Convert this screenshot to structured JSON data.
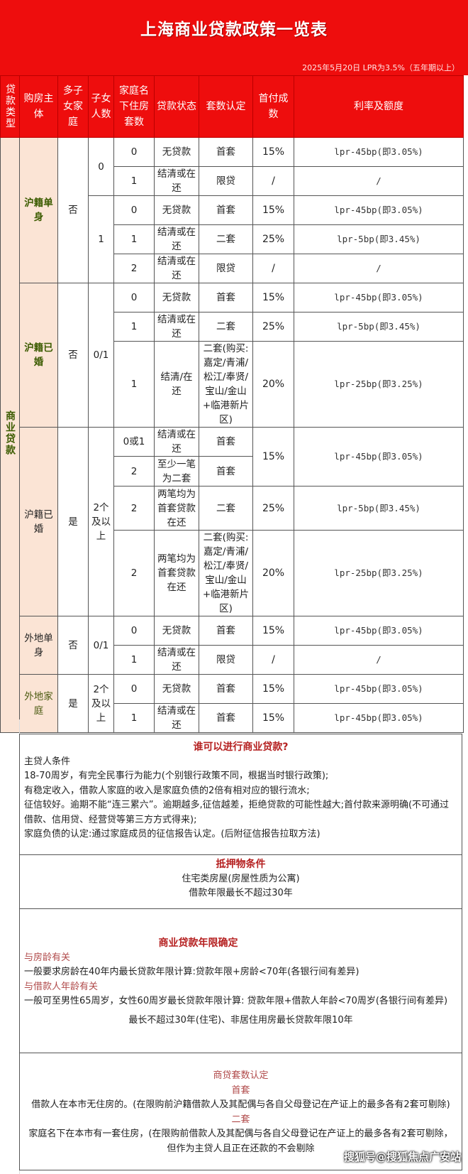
{
  "header": {
    "title": "上海商业贷款政策一览表",
    "lpr_note": "2025年5月20日 LPR为3.5%（五年期以上）",
    "bg_color": "#ee0d0d"
  },
  "columns": [
    "贷款类型",
    "购房主体",
    "多子女家庭",
    "子女人数",
    "家庭名下住房套数",
    "贷款状态",
    "套数认定",
    "首付成数",
    "利率及额度"
  ],
  "loan_type": "商业贷款",
  "groups": [
    {
      "subject": "沪籍单身",
      "style": "hl",
      "multi_child": "否",
      "children": [
        {
          "count": "0",
          "rows": [
            {
              "houses": "0",
              "status": "无贷款",
              "recognition": "首套",
              "down_payment": "15%",
              "rate": "lpr-45bp(即3.05%)"
            },
            {
              "houses": "1",
              "status": "结清或在还",
              "recognition": "限贷",
              "down_payment": "/",
              "rate": "/"
            }
          ]
        },
        {
          "count": "1",
          "rows": [
            {
              "houses": "0",
              "status": "无贷款",
              "recognition": "首套",
              "down_payment": "15%",
              "rate": "lpr-45bp(即3.05%)"
            },
            {
              "houses": "1",
              "status": "结清或在还",
              "recognition": "二套",
              "down_payment": "25%",
              "rate": "lpr-5bp(即3.45%)"
            },
            {
              "houses": "2",
              "status": "结清或在还",
              "recognition": "限贷",
              "down_payment": "/",
              "rate": "/"
            }
          ]
        }
      ]
    },
    {
      "subject": "沪籍已婚",
      "style": "hl",
      "multi_child": "否",
      "children": [
        {
          "count": "0/1",
          "rows": [
            {
              "houses": "0",
              "status": "无贷款",
              "recognition": "首套",
              "down_payment": "15%",
              "rate": "lpr-45bp(即3.05%)"
            },
            {
              "houses": "1",
              "status": "结清或在还",
              "recognition": "二套",
              "down_payment": "25%",
              "rate": "lpr-5bp(即3.45%)"
            },
            {
              "houses": "1",
              "status": "结清/在还",
              "recognition": "二套(购买:嘉定/青浦/松江/奉贤/宝山/金山+临港新片区)",
              "down_payment": "20%",
              "rate": "lpr-25bp(即3.25%)"
            }
          ]
        }
      ]
    },
    {
      "subject": "沪籍已婚",
      "style": "plain",
      "multi_child": "是",
      "children": [
        {
          "count": "2个及以上",
          "rows": [
            {
              "houses": "0或1",
              "status": "结清或在还",
              "recognition": "首套",
              "down_payment": "15%",
              "rate": "lpr-45bp(即3.05%)"
            },
            {
              "houses": "2",
              "status": "至少一笔为二套",
              "recognition": "首套",
              "down_payment": null,
              "rate": null
            },
            {
              "houses": "2",
              "status": "两笔均为首套贷款在还",
              "recognition": "二套",
              "down_payment": "25%",
              "rate": "lpr-5bp(即3.45%)"
            },
            {
              "houses": "2",
              "status": "两笔均为首套贷款在还",
              "recognition": "二套(购买:嘉定/青浦/松江/奉贤/宝山/金山+临港新片区)",
              "down_payment": "20%",
              "rate": "lpr-25bp(即3.25%)"
            }
          ]
        }
      ]
    },
    {
      "subject": "外地单身",
      "style": "plain",
      "multi_child": "否",
      "children": [
        {
          "count": "0/1",
          "rows": [
            {
              "houses": "0",
              "status": "无贷款",
              "recognition": "首套",
              "down_payment": "15%",
              "rate": "lpr-45bp(即3.05%)"
            },
            {
              "houses": "1",
              "status": "结清或在还",
              "recognition": "限贷",
              "down_payment": "/",
              "rate": "/"
            }
          ]
        }
      ]
    },
    {
      "subject": "外地家庭",
      "style": "olive",
      "multi_child": "是",
      "children": [
        {
          "count": "2个及以上",
          "rows": [
            {
              "houses": "0",
              "status": "无贷款",
              "recognition": "首套",
              "down_payment": "15%",
              "rate": "lpr-45bp(即3.05%)"
            },
            {
              "houses": "1",
              "status": "结清或在还",
              "recognition": "首套",
              "down_payment": "15%",
              "rate": "lpr-45bp(即3.05%)"
            }
          ]
        }
      ]
    }
  ],
  "who_can": {
    "title": "谁可以进行商业贷款?",
    "lines": [
      "主贷人条件",
      "18-70周岁，有完全民事行为能力(个别银行政策不同，根据当时银行政策);",
      "有稳定收入，借款人家庭的收入是家庭负债的2倍有相对应的银行流水;",
      "征信较好。逾期不能“连三累六”。逾期越多,征信越差，拒绝贷款的可能性越大;首付款来源明确(不可通过借款、信用贷、经营贷等第三方方式得来);",
      "家庭负债的认定:通过家庭成员的征信报告认定。(后附征信报告拉取方法)"
    ]
  },
  "collateral": {
    "title": "抵押物条件",
    "lines": [
      "住宅类房屋(房屋性质为公寓)",
      "借款年限最长不超过30年"
    ]
  },
  "term": {
    "title": "商业贷款年限确定",
    "house_age_label": "与房龄有关",
    "house_age_text": "一般要求房龄在40年内最长贷款年限计算:贷款年限+房龄<70年(各银行间有差异)",
    "borrower_age_label": "与借款人年龄有关",
    "borrower_age_text": "一般可至男性65周岁，女性60周岁最长贷款年限计算: 贷款年限+借款人年龄<70周岁(各银行间有差异)",
    "max_text": "最长不超过30年(住宅)、非居住用房最长贷款年限10年"
  },
  "count_rule": {
    "title": "商贷套数认定",
    "first_label": "首套",
    "first_text": "借款人在本市无住房的。(在限购前沪籍借款人及其配偶与各自父母登记在产证上的最多各有2套可剔除)",
    "second_label": "二套",
    "second_text": "家庭名下在本市有一套住房，(在限购前借款人及其配偶与各自父母登记在产证上的最多各有2套可剔除，但作为主贷人且正在还款的不会剔除"
  },
  "watermark": "搜狐号@搜狐焦点广安站"
}
